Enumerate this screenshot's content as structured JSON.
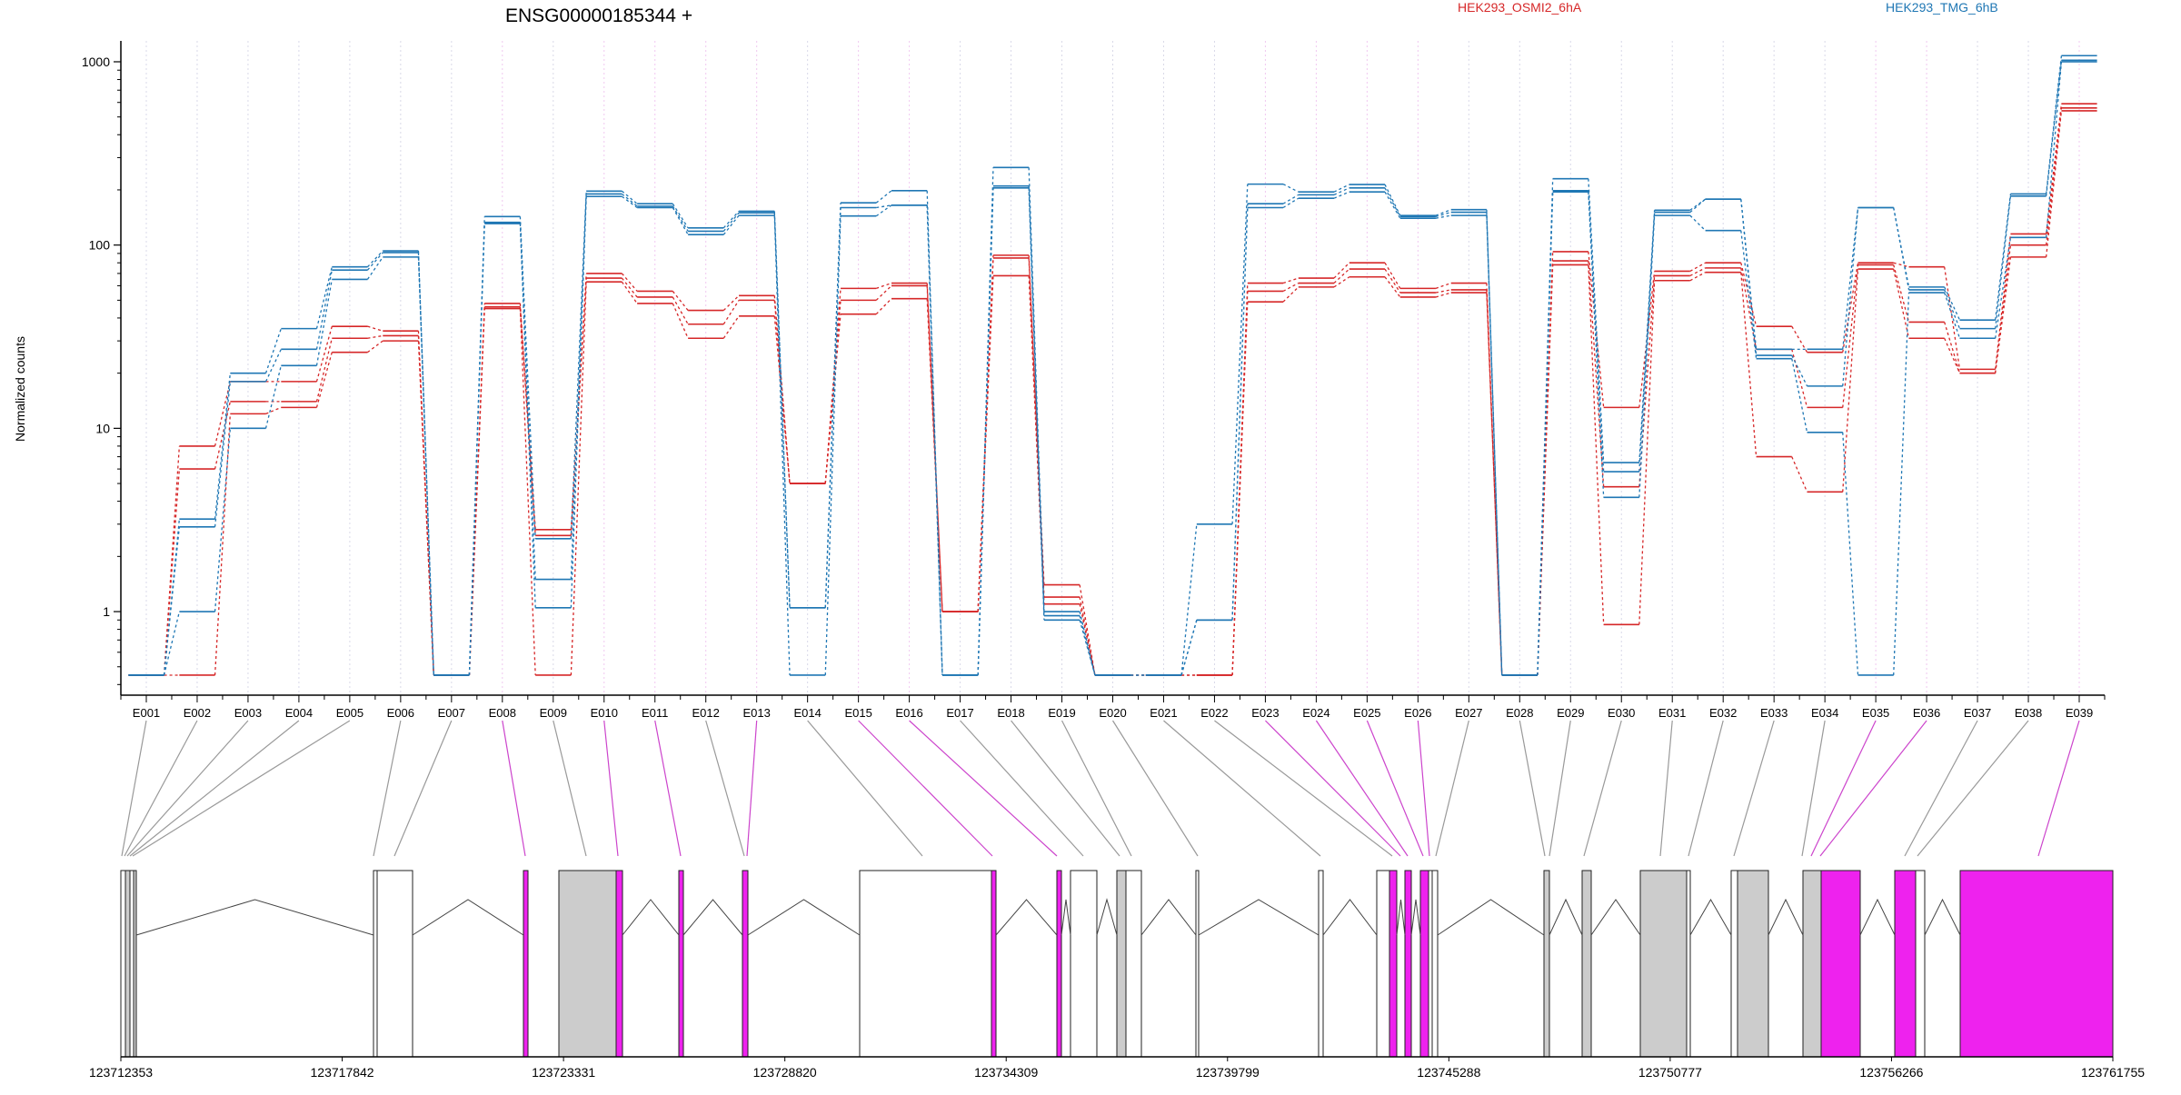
{
  "chart_data": {
    "type": "line",
    "title": "ENSG00000185344 +",
    "ylabel": "Normalized counts",
    "yscale": "log",
    "ylim": [
      0.35,
      1300
    ],
    "yticks": [
      1,
      10,
      100,
      1000
    ],
    "ytick_labels": [
      "1",
      "10",
      "100",
      "1000"
    ],
    "categories": [
      "E001",
      "E002",
      "E003",
      "E004",
      "E005",
      "E006",
      "E007",
      "E008",
      "E009",
      "E010",
      "E011",
      "E012",
      "E013",
      "E014",
      "E015",
      "E016",
      "E017",
      "E018",
      "E019",
      "E020",
      "E021",
      "E022",
      "E023",
      "E024",
      "E025",
      "E026",
      "E027",
      "E028",
      "E029",
      "E030",
      "E031",
      "E032",
      "E033",
      "E034",
      "E035",
      "E036",
      "E037",
      "E038",
      "E039"
    ],
    "legend": [
      {
        "label": "HEK293_OSMI2_6hA",
        "color": "#d62728"
      },
      {
        "label": "HEK293_TMG_6hB",
        "color": "#1f77b4"
      }
    ],
    "series": [
      {
        "color": "#d62728",
        "values": [
          0.45,
          8,
          18,
          18,
          36,
          34,
          0.45,
          48,
          2.8,
          70,
          56,
          44,
          53,
          5,
          58,
          62,
          1,
          88,
          1.4,
          0.45,
          0.45,
          0.45,
          62,
          66,
          80,
          58,
          62,
          0.45,
          92,
          13,
          72,
          80,
          36,
          26,
          80,
          76,
          21,
          115,
          590
        ]
      },
      {
        "color": "#d62728",
        "values": [
          0.45,
          6,
          14,
          14,
          31,
          32,
          0.45,
          46,
          2.6,
          66,
          52,
          37,
          50,
          5,
          50,
          60,
          1,
          85,
          1.2,
          0.45,
          0.45,
          0.45,
          56,
          62,
          74,
          55,
          57,
          0.45,
          82,
          4.8,
          68,
          75,
          27,
          13,
          78,
          38,
          20,
          100,
          560
        ]
      },
      {
        "color": "#d62728",
        "values": [
          0.45,
          0.45,
          12,
          13,
          26,
          30,
          0.45,
          45,
          0.45,
          63,
          48,
          31,
          41,
          5,
          42,
          51,
          1,
          68,
          1.1,
          0.45,
          0.45,
          0.45,
          49,
          59,
          67,
          52,
          55,
          0.45,
          78,
          0.85,
          64,
          71,
          7,
          4.5,
          74,
          31,
          20,
          86,
          540
        ]
      },
      {
        "color": "#1f77b4",
        "values": [
          0.45,
          3.2,
          20,
          35,
          76,
          93,
          0.45,
          143,
          2.5,
          197,
          168,
          124,
          153,
          1.05,
          170,
          198,
          0.45,
          265,
          1.0,
          0.45,
          0.45,
          3,
          215,
          195,
          214,
          145,
          156,
          0.45,
          230,
          6.5,
          155,
          178,
          27,
          27,
          160,
          59,
          39,
          190,
          1080
        ]
      },
      {
        "color": "#1f77b4",
        "values": [
          0.45,
          2.9,
          18,
          27,
          73,
          91,
          0.45,
          133,
          1.5,
          190,
          163,
          119,
          150,
          1.05,
          160,
          165,
          0.45,
          210,
          0.95,
          0.45,
          0.45,
          0.9,
          168,
          188,
          205,
          143,
          151,
          0.45,
          198,
          5.8,
          151,
          178,
          25,
          17,
          160,
          57,
          35,
          185,
          1020
        ]
      },
      {
        "color": "#1f77b4",
        "values": [
          0.45,
          1.0,
          10,
          22,
          65,
          86,
          0.45,
          131,
          1.05,
          184,
          160,
          114,
          145,
          0.45,
          144,
          165,
          0.45,
          205,
          0.9,
          0.45,
          0.45,
          0.9,
          160,
          180,
          195,
          140,
          145,
          0.45,
          195,
          4.2,
          145,
          120,
          24,
          9.5,
          0.45,
          55,
          31,
          110,
          1000
        ]
      }
    ],
    "gene_coords": [
      "123712353",
      "123717842",
      "123723331",
      "123728820",
      "123734309",
      "123739799",
      "123745288",
      "123750777",
      "123756266",
      "123761755"
    ]
  }
}
